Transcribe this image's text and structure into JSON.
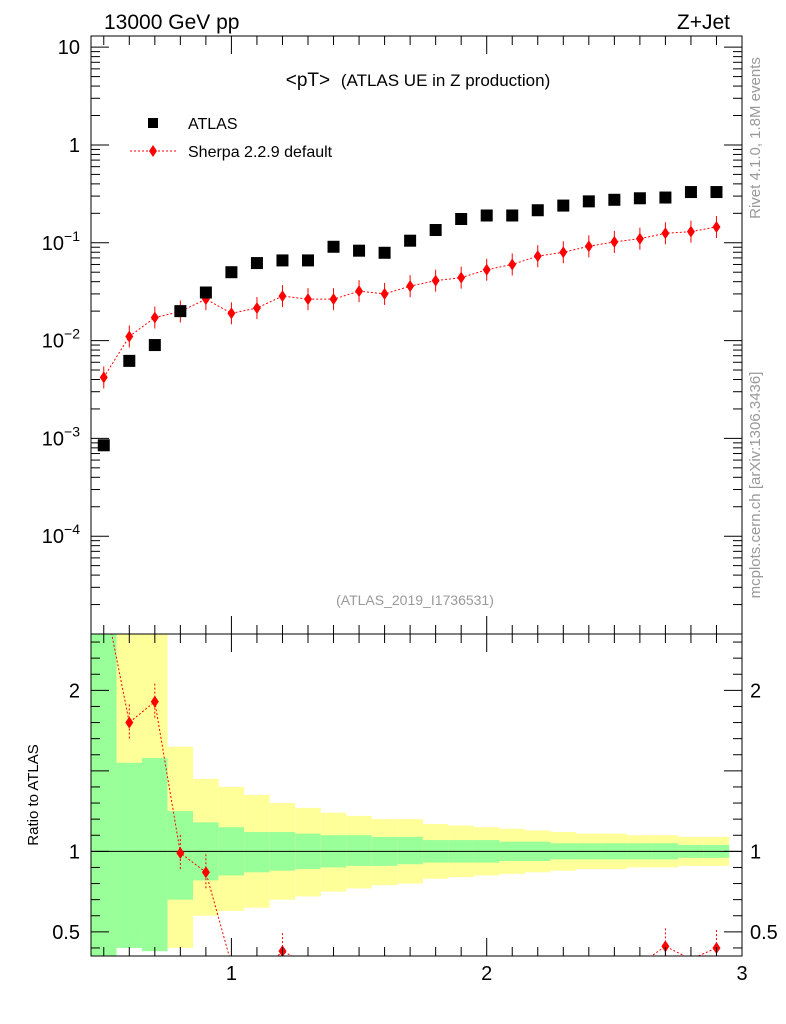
{
  "header": {
    "left": "13000 GeV pp",
    "right": "Z+Jet"
  },
  "side_labels": {
    "rivet": "Rivet 4.1.0,  1.8M events",
    "mcplots": "mcplots.cern.ch [arXiv:1306.3436]"
  },
  "colors": {
    "data": "#000000",
    "mc": "#ff0000",
    "band_inner": "#99ff99",
    "band_outer": "#ffff99",
    "watermark": "#999999"
  },
  "chart_data": [
    {
      "type": "scatter",
      "title": "<pT> (ATLAS UE in Z production)",
      "title_main": "<pT>",
      "title_rest": "(ATLAS UE in Z production)",
      "analysis_id": "(ATLAS_2019_I1736531)",
      "yscale": "log",
      "xlim": [
        0.45,
        3.0
      ],
      "ylim": [
        1e-05,
        13
      ],
      "legend_position": "top-left",
      "ytick_labels": [
        {
          "value": 10,
          "base": "10",
          "exp": ""
        },
        {
          "value": 1,
          "base": "1",
          "exp": ""
        },
        {
          "value": 0.1,
          "base": "10",
          "exp": "−1"
        },
        {
          "value": 0.01,
          "base": "10",
          "exp": "−2"
        },
        {
          "value": 0.001,
          "base": "10",
          "exp": "−3"
        },
        {
          "value": 0.0001,
          "base": "10",
          "exp": "−4"
        }
      ],
      "series": [
        {
          "name": "ATLAS",
          "marker": "square",
          "x": [
            0.5,
            0.6,
            0.7,
            0.8,
            0.9,
            1.0,
            1.1,
            1.2,
            1.3,
            1.4,
            1.5,
            1.6,
            1.7,
            1.8,
            1.9,
            2.0,
            2.1,
            2.2,
            2.3,
            2.4,
            2.5,
            2.6,
            2.7,
            2.8,
            2.9
          ],
          "y": [
            0.00085,
            0.0062,
            0.009,
            0.02,
            0.031,
            0.05,
            0.062,
            0.066,
            0.066,
            0.091,
            0.083,
            0.079,
            0.105,
            0.135,
            0.175,
            0.19,
            0.19,
            0.215,
            0.24,
            0.265,
            0.275,
            0.285,
            0.29,
            0.33,
            0.33
          ]
        },
        {
          "name": "Sherpa 2.2.9 default",
          "marker": "diamond",
          "x": [
            0.5,
            0.6,
            0.7,
            0.8,
            0.9,
            1.0,
            1.1,
            1.2,
            1.3,
            1.4,
            1.5,
            1.6,
            1.7,
            1.8,
            1.9,
            2.0,
            2.1,
            2.2,
            2.3,
            2.4,
            2.5,
            2.6,
            2.7,
            2.8,
            2.9
          ],
          "y": [
            0.0042,
            0.011,
            0.0172,
            0.0198,
            0.0265,
            0.019,
            0.0215,
            0.0285,
            0.0265,
            0.0265,
            0.032,
            0.03,
            0.036,
            0.041,
            0.044,
            0.053,
            0.06,
            0.073,
            0.08,
            0.092,
            0.102,
            0.11,
            0.125,
            0.13,
            0.145
          ]
        }
      ]
    },
    {
      "type": "line",
      "ylabel": "Ratio to ATLAS",
      "xlim": [
        0.45,
        3.0
      ],
      "ylim": [
        0.35,
        2.35
      ],
      "xtick_labels": [
        {
          "value": 1,
          "label": "1"
        },
        {
          "value": 2,
          "label": "2"
        },
        {
          "value": 3,
          "label": "3"
        }
      ],
      "ytick_labels": [
        {
          "value": 2,
          "label": "2"
        },
        {
          "value": 1,
          "label": "1"
        },
        {
          "value": 0.5,
          "label": "0.5"
        }
      ],
      "bands": {
        "edges": [
          0.45,
          0.55,
          0.65,
          0.75,
          0.85,
          0.95,
          1.05,
          1.15,
          1.25,
          1.35,
          1.45,
          1.55,
          1.65,
          1.75,
          1.85,
          1.95,
          2.05,
          2.15,
          2.25,
          2.35,
          2.45,
          2.55,
          2.65,
          2.75,
          2.85,
          2.95
        ],
        "inner_hi": [
          3.0,
          1.55,
          1.58,
          1.25,
          1.18,
          1.15,
          1.12,
          1.12,
          1.11,
          1.1,
          1.1,
          1.09,
          1.09,
          1.07,
          1.07,
          1.07,
          1.06,
          1.06,
          1.05,
          1.05,
          1.05,
          1.05,
          1.05,
          1.04,
          1.04
        ],
        "inner_lo": [
          0.0,
          0.4,
          0.38,
          0.7,
          0.82,
          0.85,
          0.87,
          0.88,
          0.89,
          0.9,
          0.91,
          0.91,
          0.92,
          0.93,
          0.93,
          0.93,
          0.94,
          0.94,
          0.95,
          0.95,
          0.95,
          0.95,
          0.95,
          0.96,
          0.96
        ],
        "outer_hi": [
          3.0,
          3.0,
          2.35,
          1.65,
          1.45,
          1.4,
          1.35,
          1.3,
          1.27,
          1.24,
          1.22,
          1.2,
          1.2,
          1.17,
          1.16,
          1.15,
          1.14,
          1.13,
          1.12,
          1.11,
          1.11,
          1.1,
          1.1,
          1.09,
          1.09
        ],
        "outer_lo": [
          0.0,
          0.54,
          0.5,
          0.4,
          0.6,
          0.63,
          0.65,
          0.7,
          0.72,
          0.75,
          0.77,
          0.79,
          0.8,
          0.83,
          0.84,
          0.85,
          0.86,
          0.87,
          0.88,
          0.89,
          0.89,
          0.9,
          0.9,
          0.91,
          0.91
        ]
      },
      "series": [
        {
          "name": "Sherpa 2.2.9 default / ATLAS",
          "x": [
            0.6,
            0.7,
            0.8,
            0.9,
            1.2,
            2.7,
            2.9
          ],
          "y": [
            1.8,
            1.93,
            0.99,
            0.87,
            0.38,
            0.41,
            0.4
          ]
        }
      ]
    }
  ]
}
